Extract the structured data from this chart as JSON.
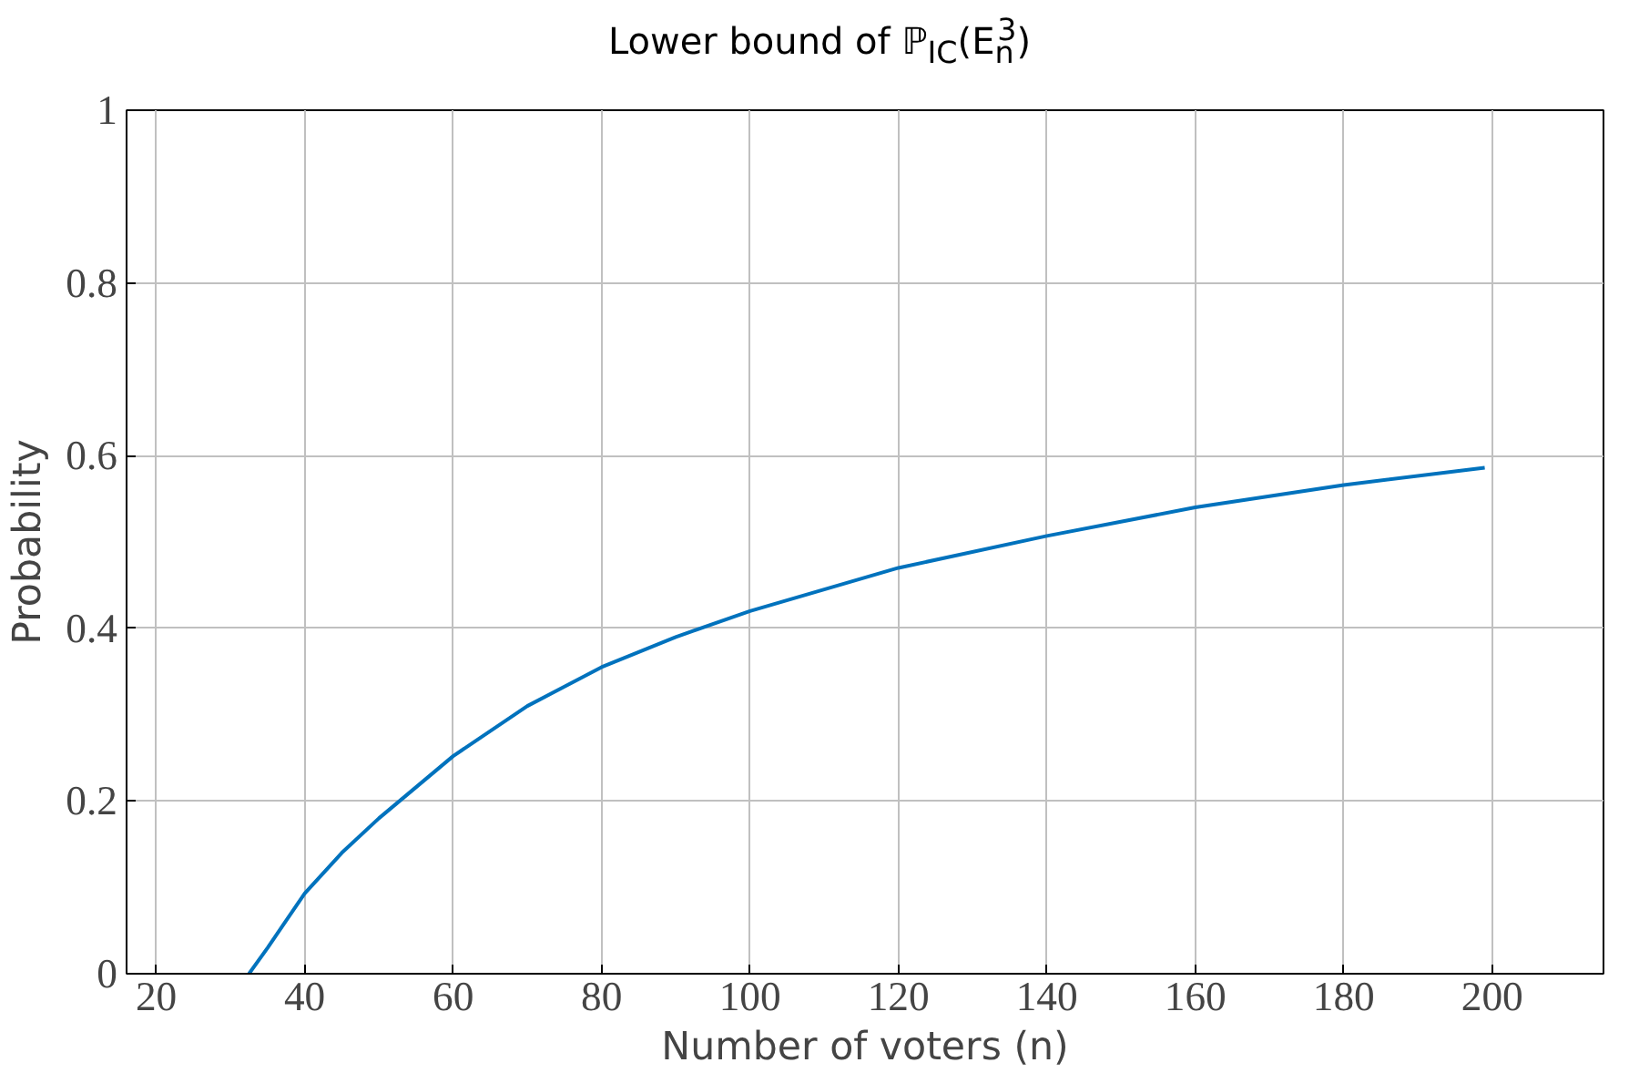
{
  "chart_data": {
    "type": "line",
    "title": "Lower bound of ℙ$_{IC}$(E$_{n}$$^{3}$)",
    "xlabel": "Number of voters (n)",
    "ylabel": "Probability",
    "x": [
      32.5,
      35,
      40,
      45,
      50,
      60,
      70,
      80,
      90,
      100,
      120,
      140,
      160,
      180,
      199
    ],
    "series": [
      {
        "color": "#0072bd",
        "values": [
          0,
          0.03,
          0.093,
          0.14,
          0.18,
          0.252,
          0.31,
          0.355,
          0.39,
          0.42,
          0.47,
          0.507,
          0.54,
          0.566,
          0.586
        ]
      }
    ],
    "xlim": [
      16,
      215
    ],
    "ylim": [
      0,
      1
    ],
    "xticks": [
      20,
      40,
      60,
      80,
      100,
      120,
      140,
      160,
      180,
      200
    ],
    "yticks": [
      0,
      {
        "value": 0.2,
        "label": "0.2"
      },
      {
        "value": 0.4,
        "label": "0.4"
      },
      {
        "value": 0.6,
        "label": "0.6"
      },
      {
        "value": 0.8,
        "label": "0.8"
      },
      1
    ],
    "grid": true,
    "marker": "none",
    "line_style": "solid"
  }
}
